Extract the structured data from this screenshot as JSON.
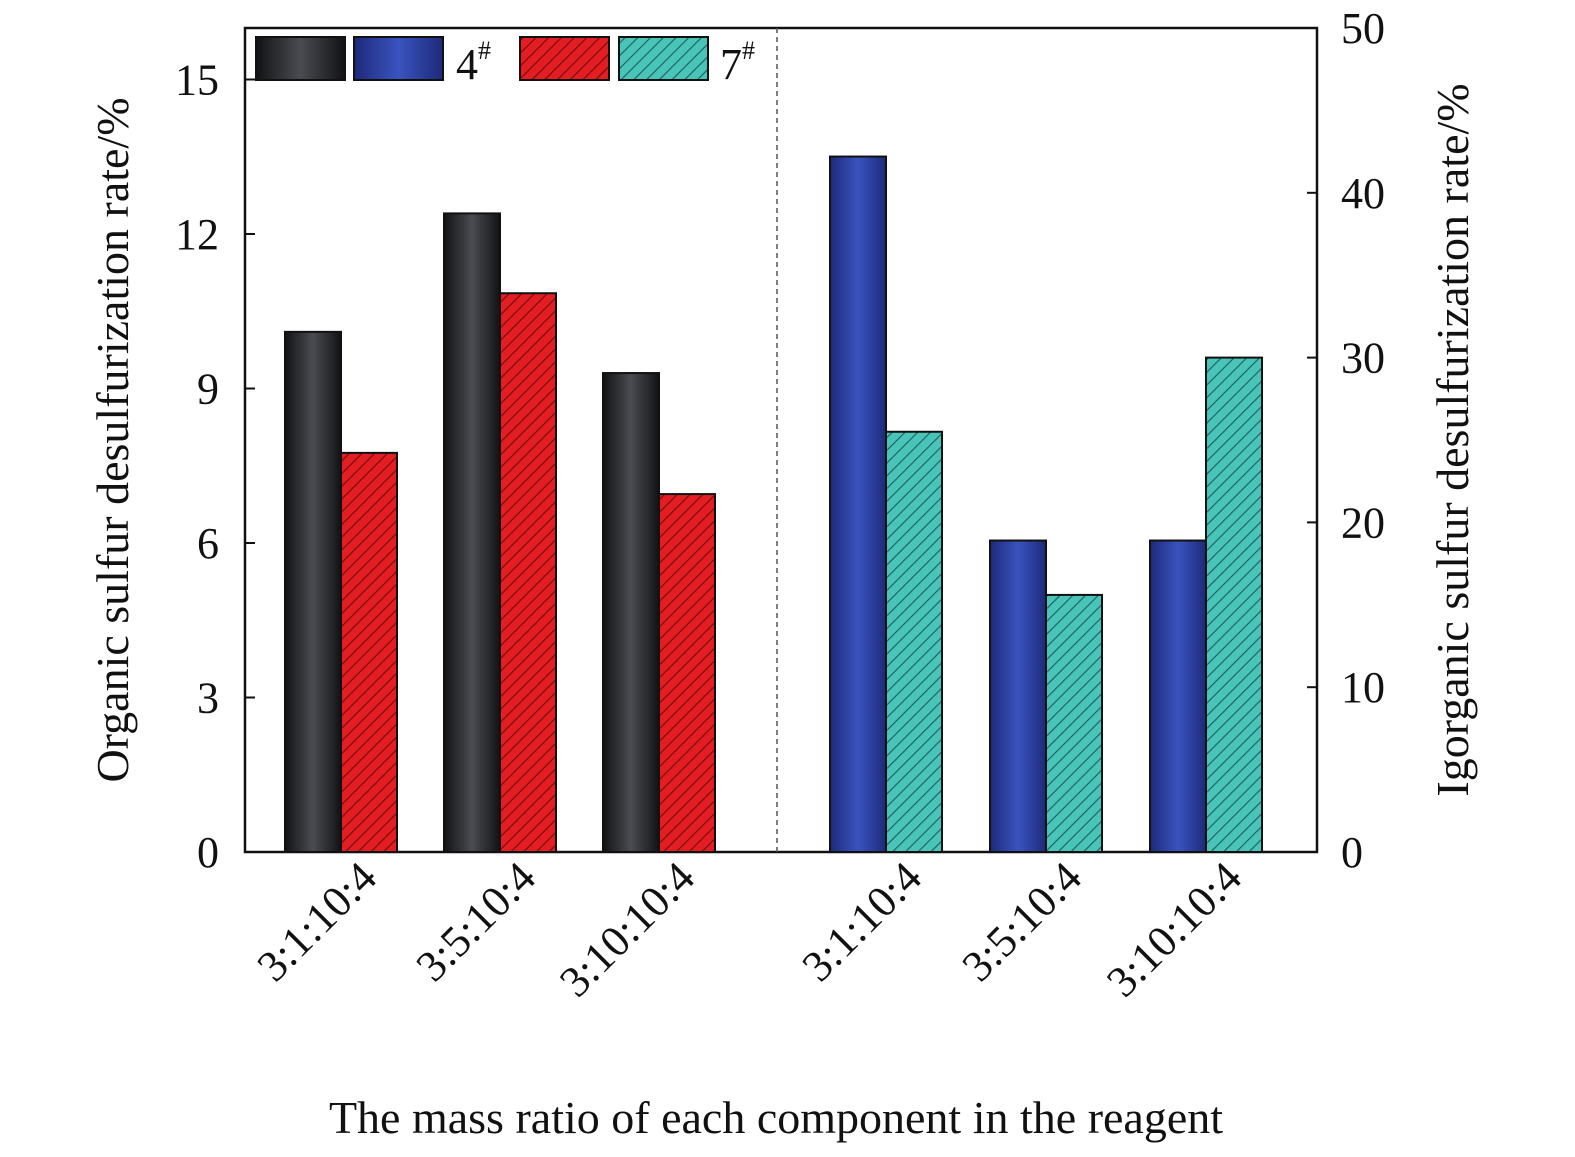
{
  "chart_data": {
    "type": "bar",
    "xlabel": "The mass ratio of each component in the reagent",
    "ylabel_left": "Organic sulfur desulfurization rate/%",
    "ylabel_right": "Igorganic sulfur desulfurization rate/%",
    "ylim_left": [
      0,
      16
    ],
    "ylim_right": [
      0,
      50
    ],
    "yticks_left": [
      "0",
      "3",
      "6",
      "9",
      "12",
      "15"
    ],
    "yticks_right": [
      "0",
      "10",
      "20",
      "30",
      "40",
      "50"
    ],
    "grid": false,
    "legend_position": "top-left",
    "legend": [
      {
        "text": "",
        "series": "4# organic"
      },
      {
        "text": "4",
        "sup": "#",
        "series": "4# inorganic"
      },
      {
        "text": "",
        "series": "7# organic"
      },
      {
        "text": "7",
        "sup": "#",
        "series": "7# inorganic"
      }
    ],
    "groups": [
      {
        "axis": "left",
        "categories": [
          "3:1:10:4",
          "3:5:10:4",
          "3:10:10:4"
        ],
        "series": [
          {
            "key": "4# organic",
            "values": [
              10.1,
              12.4,
              9.3
            ]
          },
          {
            "key": "7# organic",
            "values": [
              7.75,
              10.85,
              6.95
            ]
          }
        ]
      },
      {
        "axis": "right",
        "categories": [
          "3:1:10:4",
          "3:5:10:4",
          "3:10:10:4"
        ],
        "series": [
          {
            "key": "4# inorganic",
            "values": [
              42.2,
              18.9,
              18.9
            ]
          },
          {
            "key": "7# inorganic",
            "values": [
              25.5,
              15.6,
              30.0
            ]
          }
        ]
      }
    ]
  },
  "colors": {
    "4# organic": "#2e3036",
    "7# organic": "#e0191f",
    "4# inorganic": "#2c3fa3",
    "7# inorganic": "#3fbfb5"
  }
}
